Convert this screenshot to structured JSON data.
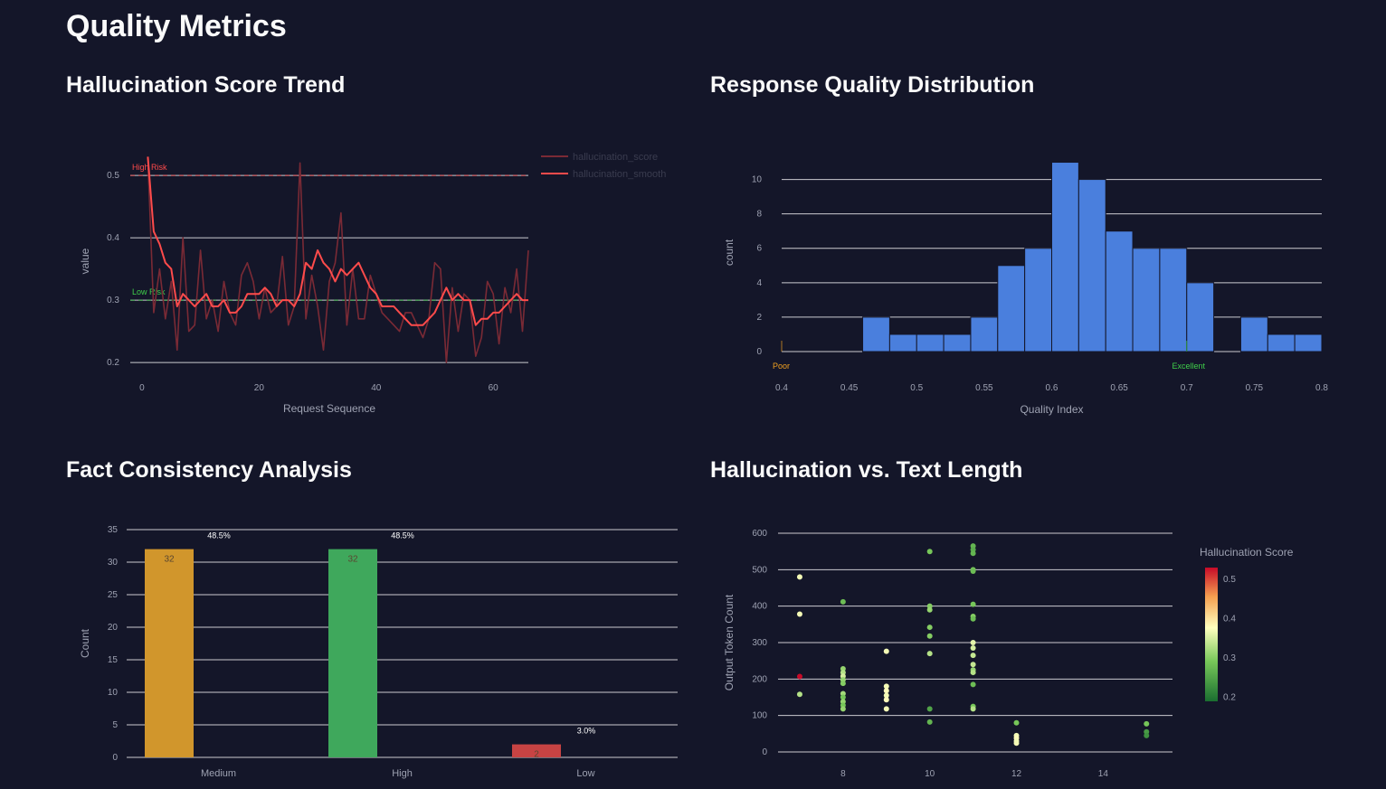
{
  "page": {
    "title": "Quality Metrics"
  },
  "charts": [
    {
      "section_title": "Hallucination Score Trend"
    },
    {
      "section_title": "Response Quality Distribution"
    },
    {
      "section_title": "Fact Consistency Analysis"
    },
    {
      "section_title": "Hallucination vs. Text Length"
    }
  ],
  "chart_data": [
    {
      "type": "line",
      "title": "Hallucination Score Trend",
      "xlabel": "Request Sequence",
      "ylabel": "value",
      "xlim": [
        -2,
        66
      ],
      "ylim": [
        0.19,
        0.535
      ],
      "xticks": [
        0,
        20,
        40,
        60
      ],
      "yticks": [
        0.2,
        0.3,
        0.4,
        0.5
      ],
      "grid": true,
      "legend_position": "top-right",
      "reference_lines": [
        {
          "label": "High Risk",
          "y": 0.5,
          "color": "#ff4b4b"
        },
        {
          "label": "Low Risk",
          "y": 0.3,
          "color": "#3fcf4a"
        }
      ],
      "series": [
        {
          "name": "hallucination_score",
          "color": "#7a2a35",
          "x": [
            1,
            2,
            3,
            4,
            5,
            6,
            7,
            8,
            9,
            10,
            11,
            12,
            13,
            14,
            15,
            16,
            17,
            18,
            19,
            20,
            21,
            22,
            23,
            24,
            25,
            26,
            27,
            28,
            29,
            30,
            31,
            32,
            33,
            34,
            35,
            36,
            37,
            38,
            39,
            40,
            41,
            42,
            43,
            44,
            45,
            46,
            47,
            48,
            49,
            50,
            51,
            52,
            53,
            54,
            55,
            56,
            57,
            58,
            59,
            60,
            61,
            62,
            63,
            64,
            65,
            66
          ],
          "values": [
            0.53,
            0.28,
            0.35,
            0.27,
            0.33,
            0.22,
            0.4,
            0.25,
            0.26,
            0.38,
            0.27,
            0.3,
            0.25,
            0.33,
            0.28,
            0.26,
            0.34,
            0.36,
            0.33,
            0.27,
            0.32,
            0.28,
            0.29,
            0.37,
            0.26,
            0.29,
            0.52,
            0.27,
            0.34,
            0.29,
            0.22,
            0.33,
            0.36,
            0.44,
            0.26,
            0.35,
            0.27,
            0.27,
            0.34,
            0.31,
            0.28,
            0.27,
            0.26,
            0.25,
            0.28,
            0.28,
            0.26,
            0.24,
            0.27,
            0.36,
            0.35,
            0.2,
            0.32,
            0.25,
            0.31,
            0.3,
            0.21,
            0.24,
            0.33,
            0.31,
            0.23,
            0.32,
            0.28,
            0.35,
            0.25,
            0.38
          ]
        },
        {
          "name": "hallucination_smooth",
          "color": "#ff4b4b",
          "x": [
            1,
            2,
            3,
            4,
            5,
            6,
            7,
            8,
            9,
            10,
            11,
            12,
            13,
            14,
            15,
            16,
            17,
            18,
            19,
            20,
            21,
            22,
            23,
            24,
            25,
            26,
            27,
            28,
            29,
            30,
            31,
            32,
            33,
            34,
            35,
            36,
            37,
            38,
            39,
            40,
            41,
            42,
            43,
            44,
            45,
            46,
            47,
            48,
            49,
            50,
            51,
            52,
            53,
            54,
            55,
            56,
            57,
            58,
            59,
            60,
            61,
            62,
            63,
            64,
            65,
            66
          ],
          "values": [
            0.53,
            0.41,
            0.39,
            0.36,
            0.35,
            0.29,
            0.31,
            0.3,
            0.29,
            0.3,
            0.31,
            0.29,
            0.29,
            0.3,
            0.28,
            0.28,
            0.29,
            0.31,
            0.31,
            0.31,
            0.32,
            0.31,
            0.29,
            0.3,
            0.3,
            0.29,
            0.31,
            0.36,
            0.35,
            0.38,
            0.36,
            0.35,
            0.33,
            0.35,
            0.34,
            0.35,
            0.36,
            0.34,
            0.32,
            0.31,
            0.29,
            0.29,
            0.29,
            0.28,
            0.27,
            0.26,
            0.26,
            0.26,
            0.27,
            0.28,
            0.3,
            0.32,
            0.3,
            0.31,
            0.3,
            0.3,
            0.26,
            0.27,
            0.27,
            0.28,
            0.28,
            0.29,
            0.3,
            0.31,
            0.3,
            0.3
          ]
        }
      ]
    },
    {
      "type": "bar",
      "title": "Response Quality Distribution",
      "xlabel": "Quality Index",
      "ylabel": "count",
      "xlim": [
        0.4,
        0.8
      ],
      "ylim": [
        0,
        11.5
      ],
      "xticks": [
        0.4,
        0.45,
        0.5,
        0.55,
        0.6,
        0.65,
        0.7,
        0.75,
        0.8
      ],
      "xtick_labels": [
        "0.4",
        "0.45",
        "0.5",
        "0.55",
        "0.6",
        "0.65",
        "0.7",
        "0.75",
        "0.8"
      ],
      "yticks": [
        0,
        2,
        4,
        6,
        8,
        10
      ],
      "grid": true,
      "bar_color": "#4a7fdd",
      "bin_width": 0.02,
      "bin_starts": [
        0.46,
        0.48,
        0.5,
        0.52,
        0.54,
        0.56,
        0.58,
        0.6,
        0.62,
        0.64,
        0.66,
        0.68,
        0.7,
        0.72,
        0.74,
        0.76,
        0.78
      ],
      "values": [
        2,
        1,
        1,
        1,
        2,
        5,
        6,
        11,
        10,
        7,
        6,
        6,
        4,
        0,
        2,
        1,
        1
      ],
      "annotations": [
        {
          "label": "Poor",
          "x": 0.4,
          "color": "#f0a020"
        },
        {
          "label": "Excellent",
          "x": 0.7,
          "color": "#3fcf4a"
        }
      ]
    },
    {
      "type": "bar",
      "title": "Fact Consistency Analysis",
      "xlabel": "",
      "ylabel": "Count",
      "ylim": [
        0,
        35
      ],
      "yticks": [
        0,
        5,
        10,
        15,
        20,
        25,
        30,
        35
      ],
      "grid": true,
      "categories": [
        "Medium",
        "High",
        "Low"
      ],
      "values": [
        32,
        32,
        2
      ],
      "percent_labels": [
        "48.5%",
        "48.5%",
        "3.0%"
      ],
      "colors": [
        "#d1962c",
        "#3fa85c",
        "#c74343"
      ]
    },
    {
      "type": "scatter",
      "title": "Hallucination vs. Text Length",
      "xlabel": "",
      "ylabel": "Output Token Count",
      "xlim": [
        6.5,
        15.6
      ],
      "ylim": [
        -10,
        610
      ],
      "xticks": [
        8,
        10,
        12,
        14
      ],
      "yticks": [
        0,
        100,
        200,
        300,
        400,
        500,
        600
      ],
      "grid": true,
      "colorbar": {
        "title": "Hallucination Score",
        "min": 0.19,
        "max": 0.53,
        "ticks": [
          0.2,
          0.3,
          0.4,
          0.5
        ]
      },
      "points": [
        {
          "x": 7,
          "y": 480,
          "score": 0.37
        },
        {
          "x": 7,
          "y": 378,
          "score": 0.37
        },
        {
          "x": 7,
          "y": 207,
          "score": 0.53
        },
        {
          "x": 7,
          "y": 158,
          "score": 0.33
        },
        {
          "x": 8,
          "y": 412,
          "score": 0.28
        },
        {
          "x": 8,
          "y": 228,
          "score": 0.31
        },
        {
          "x": 8,
          "y": 218,
          "score": 0.33
        },
        {
          "x": 8,
          "y": 208,
          "score": 0.35
        },
        {
          "x": 8,
          "y": 198,
          "score": 0.31
        },
        {
          "x": 8,
          "y": 188,
          "score": 0.3
        },
        {
          "x": 8,
          "y": 160,
          "score": 0.32
        },
        {
          "x": 8,
          "y": 150,
          "score": 0.29
        },
        {
          "x": 8,
          "y": 138,
          "score": 0.31
        },
        {
          "x": 8,
          "y": 128,
          "score": 0.29
        },
        {
          "x": 8,
          "y": 118,
          "score": 0.31
        },
        {
          "x": 9,
          "y": 276,
          "score": 0.37
        },
        {
          "x": 9,
          "y": 180,
          "score": 0.37
        },
        {
          "x": 9,
          "y": 168,
          "score": 0.38
        },
        {
          "x": 9,
          "y": 155,
          "score": 0.37
        },
        {
          "x": 9,
          "y": 143,
          "score": 0.38
        },
        {
          "x": 9,
          "y": 118,
          "score": 0.37
        },
        {
          "x": 10,
          "y": 550,
          "score": 0.29
        },
        {
          "x": 10,
          "y": 400,
          "score": 0.3
        },
        {
          "x": 10,
          "y": 390,
          "score": 0.31
        },
        {
          "x": 10,
          "y": 342,
          "score": 0.3
        },
        {
          "x": 10,
          "y": 318,
          "score": 0.3
        },
        {
          "x": 10,
          "y": 270,
          "score": 0.33
        },
        {
          "x": 10,
          "y": 118,
          "score": 0.25
        },
        {
          "x": 10,
          "y": 82,
          "score": 0.27
        },
        {
          "x": 11,
          "y": 565,
          "score": 0.27
        },
        {
          "x": 11,
          "y": 555,
          "score": 0.26
        },
        {
          "x": 11,
          "y": 545,
          "score": 0.27
        },
        {
          "x": 11,
          "y": 500,
          "score": 0.29
        },
        {
          "x": 11,
          "y": 496,
          "score": 0.28
        },
        {
          "x": 11,
          "y": 405,
          "score": 0.29
        },
        {
          "x": 11,
          "y": 372,
          "score": 0.3
        },
        {
          "x": 11,
          "y": 365,
          "score": 0.28
        },
        {
          "x": 11,
          "y": 300,
          "score": 0.36
        },
        {
          "x": 11,
          "y": 285,
          "score": 0.35
        },
        {
          "x": 11,
          "y": 265,
          "score": 0.34
        },
        {
          "x": 11,
          "y": 240,
          "score": 0.34
        },
        {
          "x": 11,
          "y": 225,
          "score": 0.31
        },
        {
          "x": 11,
          "y": 218,
          "score": 0.33
        },
        {
          "x": 11,
          "y": 185,
          "score": 0.28
        },
        {
          "x": 11,
          "y": 125,
          "score": 0.29
        },
        {
          "x": 11,
          "y": 118,
          "score": 0.33
        },
        {
          "x": 12,
          "y": 80,
          "score": 0.29
        },
        {
          "x": 12,
          "y": 45,
          "score": 0.37
        },
        {
          "x": 12,
          "y": 38,
          "score": 0.38
        },
        {
          "x": 12,
          "y": 30,
          "score": 0.37
        },
        {
          "x": 12,
          "y": 24,
          "score": 0.37
        },
        {
          "x": 15,
          "y": 77,
          "score": 0.29
        },
        {
          "x": 15,
          "y": 55,
          "score": 0.24
        },
        {
          "x": 15,
          "y": 45,
          "score": 0.23
        }
      ]
    }
  ]
}
